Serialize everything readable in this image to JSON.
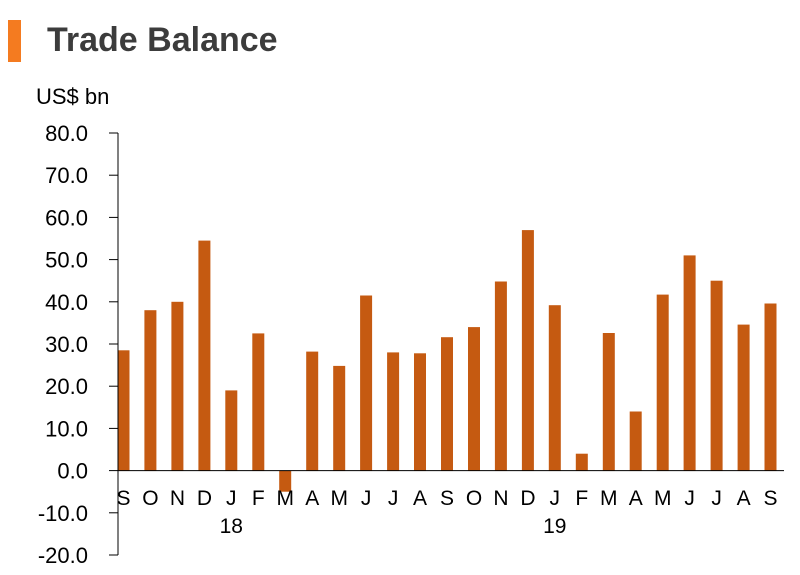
{
  "header": {
    "title": "Trade Balance",
    "unit_label": "US$ bn"
  },
  "colors": {
    "bar": "#c55a11",
    "accent": "#f47b20",
    "axis": "#000000",
    "title": "#3c3c3c"
  },
  "chart_data": {
    "type": "bar",
    "title": "Trade Balance",
    "ylabel": "US$ bn",
    "xlabel": "",
    "ylim": [
      -20,
      80
    ],
    "yticks": [
      80,
      70,
      60,
      50,
      40,
      30,
      20,
      10,
      0,
      -10,
      -20
    ],
    "ytick_labels": [
      "80.0",
      "70.0",
      "60.0",
      "50.0",
      "40.0",
      "30.0",
      "20.0",
      "10.0",
      "0.0",
      "-10.0",
      "-20.0"
    ],
    "categories": [
      "S",
      "O",
      "N",
      "D",
      "J",
      "F",
      "M",
      "A",
      "M",
      "J",
      "J",
      "A",
      "S",
      "O",
      "N",
      "D",
      "J",
      "F",
      "M",
      "A",
      "M",
      "J",
      "J",
      "A",
      "S"
    ],
    "values": [
      28.5,
      38.0,
      40.0,
      54.5,
      19.0,
      32.5,
      -5.0,
      28.2,
      24.8,
      41.5,
      28.0,
      27.8,
      31.6,
      34.0,
      44.8,
      57.0,
      39.2,
      4.0,
      32.6,
      14.0,
      41.7,
      51.0,
      45.0,
      34.6,
      39.6
    ],
    "year_labels": [
      {
        "label": "18",
        "index": 4
      },
      {
        "label": "19",
        "index": 16
      }
    ],
    "grid": false,
    "legend": "none"
  }
}
